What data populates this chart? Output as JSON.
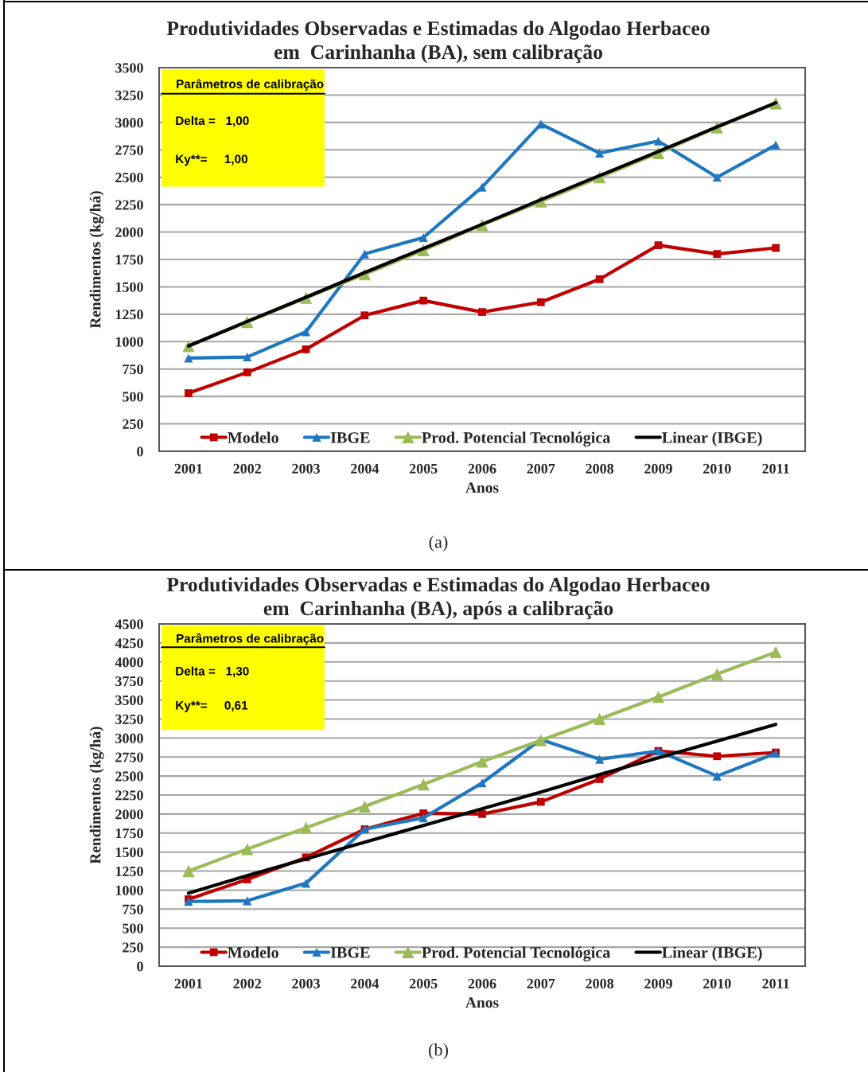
{
  "chart_data": [
    {
      "type": "line",
      "title": "Produtividades Observadas e Estimadas do Algodao Herbaceo\nem  Carinhanha (BA), sem calibração",
      "xlabel": "Anos",
      "ylabel": "Rendimentos (kg/há)",
      "x": [
        2001,
        2002,
        2003,
        2004,
        2005,
        2006,
        2007,
        2008,
        2009,
        2010,
        2011
      ],
      "xlim": [
        2000.5,
        2011.5
      ],
      "xticks": [
        2001,
        2002,
        2003,
        2004,
        2005,
        2006,
        2007,
        2008,
        2009,
        2010,
        2011
      ],
      "ylim": [
        0,
        3500
      ],
      "yticks": [
        0,
        250,
        500,
        750,
        1000,
        1250,
        1500,
        1750,
        2000,
        2250,
        2500,
        2750,
        3000,
        3250,
        3500
      ],
      "grid": "y",
      "legend": "bottom",
      "line_style": "solid",
      "annotations": [
        "Parâmetros de calibração",
        "Delta =   1,00",
        "Ky**=     1,00",
        "(a)"
      ],
      "series": [
        {
          "name": "Modelo",
          "color": "#c00000",
          "marker": "square",
          "values": [
            530,
            720,
            930,
            1240,
            1375,
            1270,
            1360,
            1570,
            1880,
            1800,
            1855
          ]
        },
        {
          "name": "IBGE",
          "color": "#1f77c0",
          "marker": "triangle",
          "values": [
            850,
            860,
            1090,
            1800,
            1950,
            2410,
            2985,
            2720,
            2830,
            2500,
            2795
          ]
        },
        {
          "name": "Prod. Potencial Tecnológica",
          "color": "#9bbb59",
          "marker": "triangle",
          "values": [
            960,
            1180,
            1400,
            1615,
            1835,
            2065,
            2280,
            2500,
            2720,
            2955,
            3175
          ]
        },
        {
          "name": "Linear (IBGE)",
          "color": "#000000",
          "marker": "none",
          "values": [
            960,
            1185,
            1405,
            1630,
            1850,
            2070,
            2295,
            2515,
            2735,
            2960,
            3180
          ]
        }
      ]
    },
    {
      "type": "line",
      "title": "Produtividades Observadas e Estimadas do Algodao Herbaceo\nem  Carinhanha (BA), após a calibração",
      "xlabel": "Anos",
      "ylabel": "Rendimentos (kg/há)",
      "x": [
        2001,
        2002,
        2003,
        2004,
        2005,
        2006,
        2007,
        2008,
        2009,
        2010,
        2011
      ],
      "xlim": [
        2000.5,
        2011.5
      ],
      "xticks": [
        2001,
        2002,
        2003,
        2004,
        2005,
        2006,
        2007,
        2008,
        2009,
        2010,
        2011
      ],
      "ylim": [
        0,
        4500
      ],
      "yticks": [
        0,
        250,
        500,
        750,
        1000,
        1250,
        1500,
        1750,
        2000,
        2250,
        2500,
        2750,
        3000,
        3250,
        3500,
        3750,
        4000,
        4250,
        4500
      ],
      "grid": "y",
      "legend": "bottom",
      "line_style": "solid",
      "annotations": [
        "Parâmetros de calibração",
        "Delta =   1,30",
        "Ky**=     0,61",
        "(b)"
      ],
      "series": [
        {
          "name": "Modelo",
          "color": "#c00000",
          "marker": "square",
          "values": [
            880,
            1140,
            1430,
            1800,
            2010,
            2000,
            2160,
            2460,
            2830,
            2760,
            2810
          ]
        },
        {
          "name": "IBGE",
          "color": "#1f77c0",
          "marker": "triangle",
          "values": [
            850,
            860,
            1090,
            1800,
            1950,
            2410,
            2980,
            2720,
            2830,
            2500,
            2800
          ]
        },
        {
          "name": "Prod. Potencial Tecnológica",
          "color": "#9bbb59",
          "marker": "triangle",
          "values": [
            1250,
            1540,
            1820,
            2100,
            2390,
            2690,
            2970,
            3250,
            3540,
            3840,
            4130
          ]
        },
        {
          "name": "Linear (IBGE)",
          "color": "#000000",
          "marker": "none",
          "values": [
            960,
            1190,
            1410,
            1630,
            1850,
            2070,
            2290,
            2520,
            2740,
            2960,
            3180
          ]
        }
      ]
    }
  ]
}
